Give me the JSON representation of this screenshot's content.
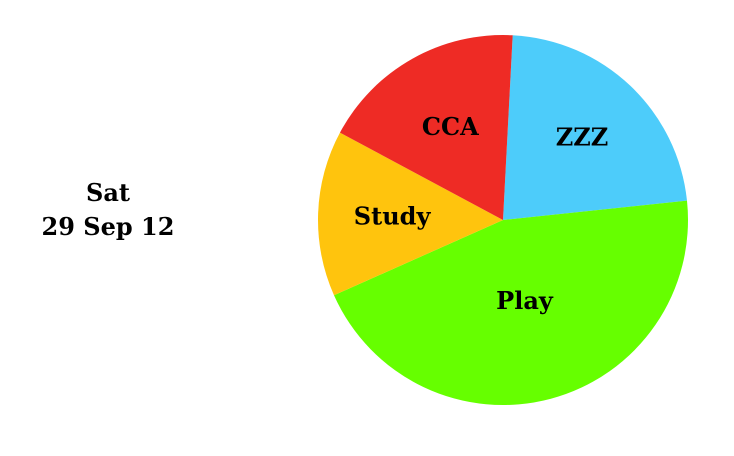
{
  "date": {
    "day": "Sat",
    "full": "29 Sep 12"
  },
  "chart_data": {
    "type": "pie",
    "title": "",
    "slices": [
      {
        "label": "ZZZ",
        "value": 22.5,
        "color": "#4dccfa"
      },
      {
        "label": "Play",
        "value": 45.0,
        "color": "#66ff00"
      },
      {
        "label": "Study",
        "value": 14.5,
        "color": "#ffc40d"
      },
      {
        "label": "CCA",
        "value": 18.0,
        "color": "#ee2b25"
      }
    ],
    "start_angle_deg": 3,
    "legend": "none"
  }
}
